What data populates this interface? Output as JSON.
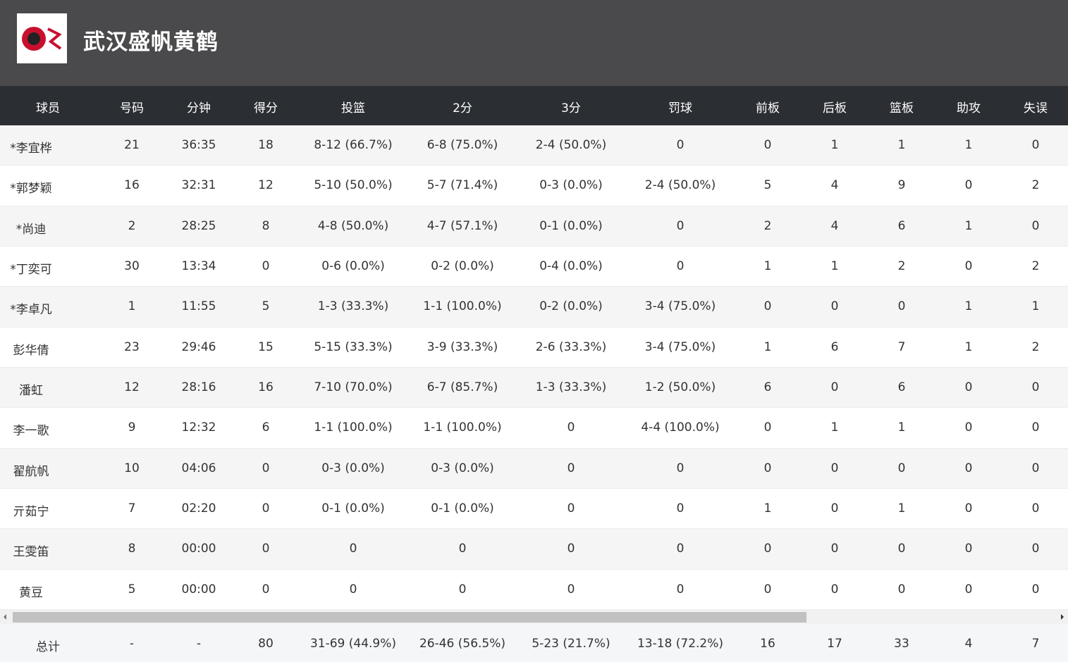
{
  "header": {
    "title": "武汉盛帆黄鹤"
  },
  "table": {
    "columns": [
      "球员",
      "号码",
      "分钟",
      "得分",
      "投篮",
      "2分",
      "3分",
      "罚球",
      "前板",
      "后板",
      "篮板",
      "助攻",
      "失误"
    ],
    "rows": [
      [
        "*李宜桦",
        "21",
        "36:35",
        "18",
        "8-12 (66.7%)",
        "6-8 (75.0%)",
        "2-4 (50.0%)",
        "0",
        "0",
        "1",
        "1",
        "1",
        "0"
      ],
      [
        "*郭梦颖",
        "16",
        "32:31",
        "12",
        "5-10 (50.0%)",
        "5-7 (71.4%)",
        "0-3 (0.0%)",
        "2-4 (50.0%)",
        "5",
        "4",
        "9",
        "0",
        "2"
      ],
      [
        "*尚迪",
        "2",
        "28:25",
        "8",
        "4-8 (50.0%)",
        "4-7 (57.1%)",
        "0-1 (0.0%)",
        "0",
        "2",
        "4",
        "6",
        "1",
        "0"
      ],
      [
        "*丁奕可",
        "30",
        "13:34",
        "0",
        "0-6 (0.0%)",
        "0-2 (0.0%)",
        "0-4 (0.0%)",
        "0",
        "1",
        "1",
        "2",
        "0",
        "2"
      ],
      [
        "*李卓凡",
        "1",
        "11:55",
        "5",
        "1-3 (33.3%)",
        "1-1 (100.0%)",
        "0-2 (0.0%)",
        "3-4 (75.0%)",
        "0",
        "0",
        "0",
        "1",
        "1"
      ],
      [
        "彭华倩",
        "23",
        "29:46",
        "15",
        "5-15 (33.3%)",
        "3-9 (33.3%)",
        "2-6 (33.3%)",
        "3-4 (75.0%)",
        "1",
        "6",
        "7",
        "1",
        "2"
      ],
      [
        "潘虹",
        "12",
        "28:16",
        "16",
        "7-10 (70.0%)",
        "6-7 (85.7%)",
        "1-3 (33.3%)",
        "1-2 (50.0%)",
        "6",
        "0",
        "6",
        "0",
        "0"
      ],
      [
        "李一歌",
        "9",
        "12:32",
        "6",
        "1-1 (100.0%)",
        "1-1 (100.0%)",
        "0",
        "4-4 (100.0%)",
        "0",
        "1",
        "1",
        "0",
        "0"
      ],
      [
        "翟航帆",
        "10",
        "04:06",
        "0",
        "0-3 (0.0%)",
        "0-3 (0.0%)",
        "0",
        "0",
        "0",
        "0",
        "0",
        "0",
        "0"
      ],
      [
        "亓茹宁",
        "7",
        "02:20",
        "0",
        "0-1 (0.0%)",
        "0-1 (0.0%)",
        "0",
        "0",
        "1",
        "0",
        "1",
        "0",
        "0"
      ],
      [
        "王雯笛",
        "8",
        "00:00",
        "0",
        "0",
        "0",
        "0",
        "0",
        "0",
        "0",
        "0",
        "0",
        "0"
      ],
      [
        "黄豆",
        "5",
        "00:00",
        "0",
        "0",
        "0",
        "0",
        "0",
        "0",
        "0",
        "0",
        "0",
        "0"
      ]
    ],
    "totals": [
      "总计",
      "-",
      "-",
      "80",
      "31-69 (44.9%)",
      "26-46 (56.5%)",
      "5-23 (21.7%)",
      "13-18 (72.2%)",
      "16",
      "17",
      "33",
      "4",
      "7"
    ]
  }
}
